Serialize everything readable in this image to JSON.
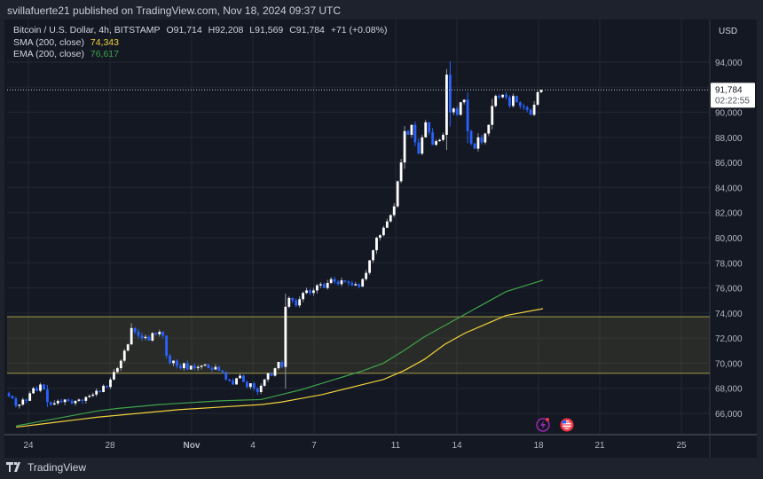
{
  "header": {
    "published": "svillafuerte21 published on TradingView.com, Nov 18, 2024 09:37 UTC"
  },
  "legend": {
    "symbol": "Bitcoin / U.S. Dollar, 4h, BITSTAMP",
    "open": "O91,714",
    "high": "H92,208",
    "low": "L91,569",
    "close": "C91,784",
    "change": "+71 (+0.08%)",
    "sma_label": "SMA (200, close)",
    "sma_value": "74,343",
    "ema_label": "EMA (200, close)",
    "ema_value": "76,617"
  },
  "price_axis": {
    "currency": "USD",
    "last_price": "91,784",
    "countdown": "02:22:55"
  },
  "brand": "TradingView",
  "colors": {
    "up": "#ffffff",
    "down": "#2962ff",
    "sma": "#f0d23c",
    "ema": "#3fa34a",
    "zone": "#8a8440",
    "background": "#141823"
  },
  "chart_data": {
    "type": "candlestick",
    "interval": "4h",
    "y_ticks": [
      66000,
      68000,
      70000,
      72000,
      74000,
      76000,
      78000,
      80000,
      82000,
      84000,
      86000,
      88000,
      90000,
      94000
    ],
    "y_tick_labels": [
      "66,000",
      "68,000",
      "70,000",
      "72,000",
      "74,000",
      "76,000",
      "78,000",
      "80,000",
      "82,000",
      "84,000",
      "86,000",
      "88,000",
      "90,000",
      "94,000"
    ],
    "ylim": [
      64500,
      96700
    ],
    "x_ticks": [
      {
        "label": "24",
        "day": 0
      },
      {
        "label": "28",
        "day": 4
      },
      {
        "label": "Nov",
        "day": 8
      },
      {
        "label": "4",
        "day": 11
      },
      {
        "label": "7",
        "day": 14
      },
      {
        "label": "11",
        "day": 18
      },
      {
        "label": "14",
        "day": 21
      },
      {
        "label": "18",
        "day": 25
      },
      {
        "label": "21",
        "day": 28
      },
      {
        "label": "25",
        "day": 32
      }
    ],
    "support_zone": [
      69200,
      73700
    ],
    "last_price": 91784,
    "closes": [
      67400,
      67200,
      66600,
      66700,
      67100,
      67000,
      67600,
      68000,
      67800,
      68300,
      67900,
      66900,
      66700,
      66800,
      67000,
      66900,
      67100,
      67000,
      66800,
      67000,
      67100,
      67000,
      67300,
      67400,
      67500,
      67800,
      67700,
      68200,
      68100,
      68700,
      69300,
      69600,
      70200,
      71000,
      71500,
      72800,
      72500,
      72200,
      72000,
      72100,
      71800,
      72400,
      72300,
      72500,
      72200,
      70600,
      70000,
      70200,
      69800,
      69600,
      70000,
      69500,
      69800,
      69600,
      69700,
      69800,
      69900,
      69600,
      69500,
      69700,
      69400,
      69300,
      68700,
      68600,
      68300,
      68800,
      69000,
      68500,
      68100,
      68400,
      68000,
      67700,
      68200,
      68700,
      69200,
      69000,
      69600,
      70100,
      69700,
      74500,
      75200,
      75000,
      74600,
      75100,
      75600,
      75800,
      75600,
      75800,
      76200,
      76300,
      76000,
      76400,
      76700,
      76500,
      76300,
      76600,
      76500,
      76400,
      76200,
      76300,
      76100,
      76700,
      77200,
      78200,
      79000,
      80000,
      80200,
      80800,
      81300,
      81800,
      82500,
      84500,
      86000,
      88500,
      88200,
      89000,
      87600,
      86700,
      88000,
      89200,
      88400,
      87400,
      87700,
      87800,
      88200,
      93000,
      90000,
      90300,
      89800,
      90800,
      91000,
      88500,
      87500,
      87100,
      88000,
      87600,
      88300,
      89000,
      90500,
      91300,
      91200,
      91400,
      91200,
      90500,
      91300,
      90800,
      90500,
      90400,
      90200,
      89800,
      90600,
      91600,
      91784
    ],
    "sma_200_daily": [
      64900,
      65100,
      65300,
      65500,
      65700,
      65850,
      66000,
      66150,
      66300,
      66400,
      66500,
      66600,
      66700,
      66900,
      67200,
      67500,
      67900,
      68300,
      68700,
      69400,
      70300,
      71500,
      72400,
      73100,
      73800,
      74343
    ],
    "ema_200_daily": [
      65000,
      65300,
      65600,
      65900,
      66200,
      66400,
      66550,
      66700,
      66800,
      66900,
      67000,
      67050,
      67100,
      67500,
      67900,
      68400,
      68900,
      69400,
      70000,
      71000,
      72100,
      73000,
      73900,
      74800,
      75700,
      76617
    ],
    "indicators": [
      {
        "name": "SMA (200, close)",
        "last": 74343
      },
      {
        "name": "EMA (200, close)",
        "last": 76617
      }
    ]
  },
  "events": [
    {
      "icon": "lightning-event-icon"
    },
    {
      "icon": "us-flag-event-icon"
    }
  ]
}
